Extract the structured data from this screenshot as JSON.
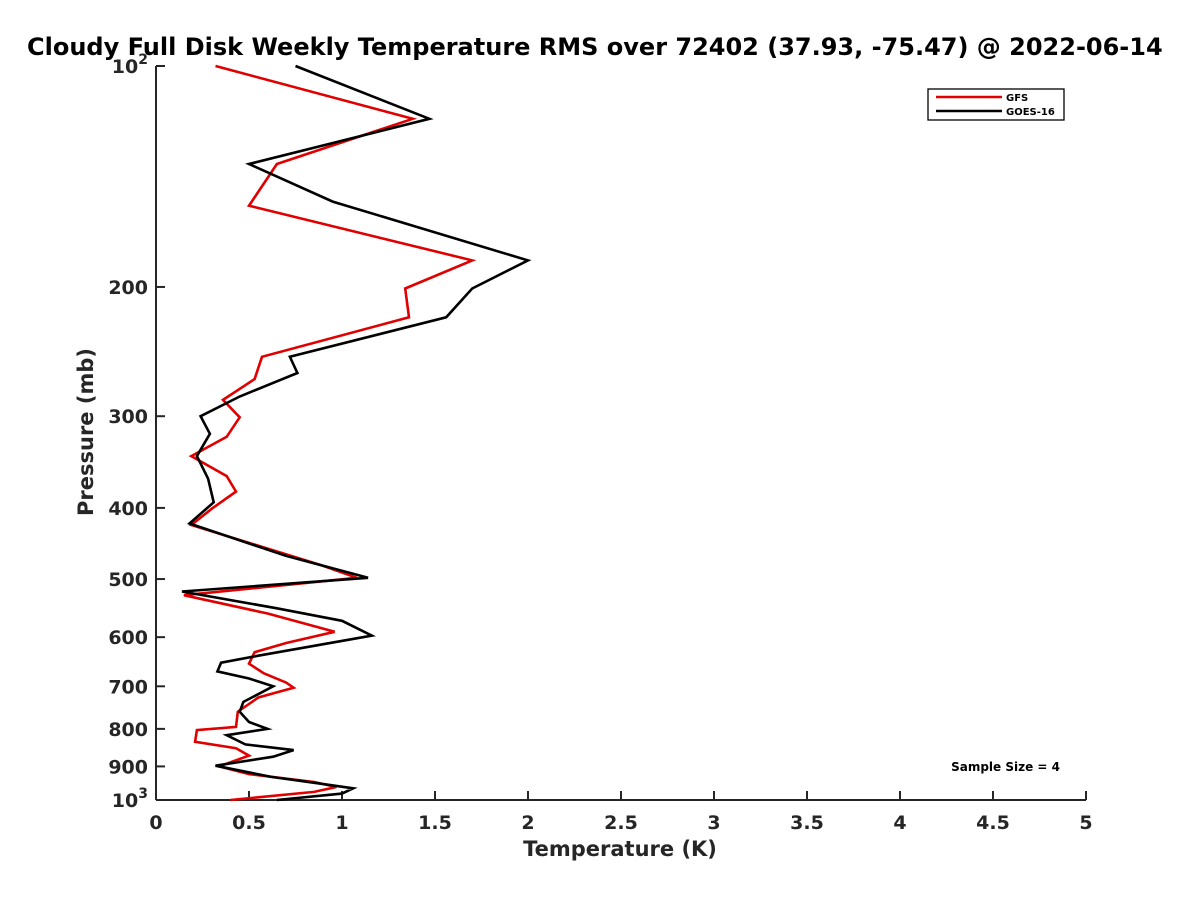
{
  "chart_data": {
    "type": "line",
    "title": "Cloudy Full Disk Weekly Temperature RMS over 72402 (37.93, -75.47) @ 2022-06-14",
    "xlabel": "Temperature (K)",
    "ylabel": "Pressure (mb)",
    "xlim": [
      0,
      5
    ],
    "ylim": [
      100,
      1000
    ],
    "y_scale": "log",
    "y_reversed": true,
    "x_ticks": [
      {
        "value": 0,
        "label": "0"
      },
      {
        "value": 0.5,
        "label": "0.5"
      },
      {
        "value": 1,
        "label": "1"
      },
      {
        "value": 1.5,
        "label": "1.5"
      },
      {
        "value": 2,
        "label": "2"
      },
      {
        "value": 2.5,
        "label": "2.5"
      },
      {
        "value": 3,
        "label": "3"
      },
      {
        "value": 3.5,
        "label": "3.5"
      },
      {
        "value": 4,
        "label": "4"
      },
      {
        "value": 4.5,
        "label": "4.5"
      },
      {
        "value": 5,
        "label": "5"
      }
    ],
    "y_ticks": [
      {
        "value": 100,
        "base": "10",
        "exp": "2"
      },
      {
        "value": 200,
        "base": "200",
        "exp": ""
      },
      {
        "value": 300,
        "base": "300",
        "exp": ""
      },
      {
        "value": 400,
        "base": "400",
        "exp": ""
      },
      {
        "value": 500,
        "base": "500",
        "exp": ""
      },
      {
        "value": 600,
        "base": "600",
        "exp": ""
      },
      {
        "value": 700,
        "base": "700",
        "exp": ""
      },
      {
        "value": 800,
        "base": "800",
        "exp": ""
      },
      {
        "value": 900,
        "base": "900",
        "exp": ""
      },
      {
        "value": 1000,
        "base": "10",
        "exp": "3"
      }
    ],
    "grid": false,
    "legend_position": "top-right",
    "annotation": "Sample Size = 4",
    "series": [
      {
        "name": "GFS",
        "color": "#e00000",
        "points": [
          {
            "x": 0.32,
            "y": 100
          },
          {
            "x": 1.38,
            "y": 118
          },
          {
            "x": 0.65,
            "y": 136
          },
          {
            "x": 0.5,
            "y": 155
          },
          {
            "x": 1.7,
            "y": 184
          },
          {
            "x": 1.34,
            "y": 201
          },
          {
            "x": 1.36,
            "y": 220
          },
          {
            "x": 0.57,
            "y": 249
          },
          {
            "x": 0.53,
            "y": 267
          },
          {
            "x": 0.36,
            "y": 285
          },
          {
            "x": 0.45,
            "y": 301
          },
          {
            "x": 0.38,
            "y": 320
          },
          {
            "x": 0.19,
            "y": 340
          },
          {
            "x": 0.38,
            "y": 362
          },
          {
            "x": 0.43,
            "y": 380
          },
          {
            "x": 0.3,
            "y": 401
          },
          {
            "x": 0.19,
            "y": 422
          },
          {
            "x": 0.88,
            "y": 478
          },
          {
            "x": 1.08,
            "y": 498
          },
          {
            "x": 0.15,
            "y": 526
          },
          {
            "x": 0.6,
            "y": 557
          },
          {
            "x": 0.96,
            "y": 590
          },
          {
            "x": 0.7,
            "y": 611
          },
          {
            "x": 0.53,
            "y": 629
          },
          {
            "x": 0.5,
            "y": 652
          },
          {
            "x": 0.58,
            "y": 672
          },
          {
            "x": 0.7,
            "y": 692
          },
          {
            "x": 0.74,
            "y": 703
          },
          {
            "x": 0.55,
            "y": 725
          },
          {
            "x": 0.44,
            "y": 758
          },
          {
            "x": 0.43,
            "y": 795
          },
          {
            "x": 0.22,
            "y": 803
          },
          {
            "x": 0.21,
            "y": 833
          },
          {
            "x": 0.43,
            "y": 850
          },
          {
            "x": 0.5,
            "y": 870
          },
          {
            "x": 0.34,
            "y": 900
          },
          {
            "x": 0.5,
            "y": 922
          },
          {
            "x": 0.85,
            "y": 945
          },
          {
            "x": 0.97,
            "y": 960
          },
          {
            "x": 0.85,
            "y": 975
          },
          {
            "x": 0.4,
            "y": 1000
          }
        ]
      },
      {
        "name": "GOES-16",
        "color": "#000000",
        "points": [
          {
            "x": 0.75,
            "y": 100
          },
          {
            "x": 1.47,
            "y": 118
          },
          {
            "x": 0.5,
            "y": 136
          },
          {
            "x": 0.95,
            "y": 153
          },
          {
            "x": 2.0,
            "y": 184
          },
          {
            "x": 1.7,
            "y": 201
          },
          {
            "x": 1.56,
            "y": 220
          },
          {
            "x": 0.72,
            "y": 249
          },
          {
            "x": 0.76,
            "y": 262
          },
          {
            "x": 0.45,
            "y": 282
          },
          {
            "x": 0.24,
            "y": 300
          },
          {
            "x": 0.29,
            "y": 317
          },
          {
            "x": 0.22,
            "y": 340
          },
          {
            "x": 0.28,
            "y": 365
          },
          {
            "x": 0.31,
            "y": 393
          },
          {
            "x": 0.18,
            "y": 420
          },
          {
            "x": 0.7,
            "y": 465
          },
          {
            "x": 1.14,
            "y": 498
          },
          {
            "x": 0.14,
            "y": 520
          },
          {
            "x": 0.65,
            "y": 548
          },
          {
            "x": 1.0,
            "y": 570
          },
          {
            "x": 1.16,
            "y": 597
          },
          {
            "x": 0.55,
            "y": 636
          },
          {
            "x": 0.35,
            "y": 650
          },
          {
            "x": 0.33,
            "y": 668
          },
          {
            "x": 0.5,
            "y": 683
          },
          {
            "x": 0.63,
            "y": 700
          },
          {
            "x": 0.47,
            "y": 735
          },
          {
            "x": 0.45,
            "y": 758
          },
          {
            "x": 0.5,
            "y": 783
          },
          {
            "x": 0.6,
            "y": 800
          },
          {
            "x": 0.38,
            "y": 816
          },
          {
            "x": 0.48,
            "y": 840
          },
          {
            "x": 0.74,
            "y": 855
          },
          {
            "x": 0.63,
            "y": 873
          },
          {
            "x": 0.32,
            "y": 898
          },
          {
            "x": 0.62,
            "y": 930
          },
          {
            "x": 0.88,
            "y": 950
          },
          {
            "x": 1.06,
            "y": 964
          },
          {
            "x": 1.0,
            "y": 980
          },
          {
            "x": 0.65,
            "y": 1000
          }
        ]
      }
    ]
  }
}
